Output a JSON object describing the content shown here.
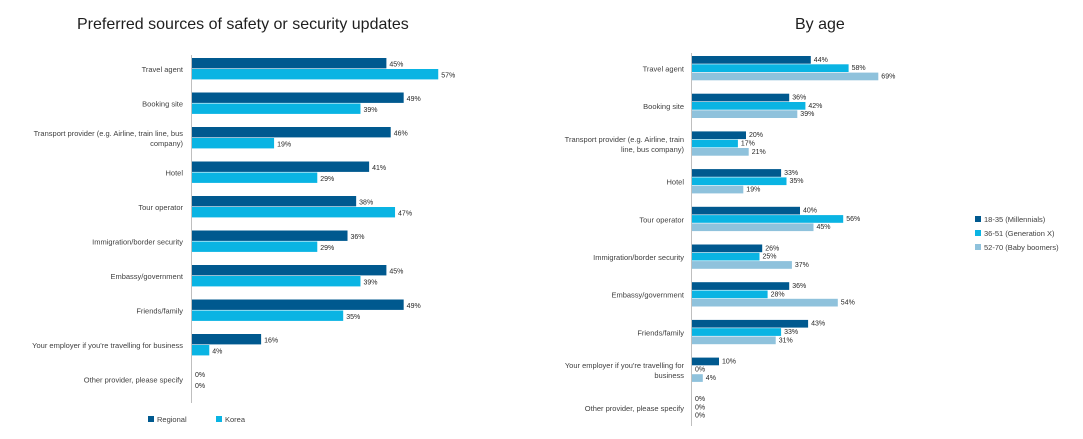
{
  "chart_data": [
    {
      "type": "bar",
      "orientation": "horizontal",
      "title": "Preferred sources of safety or security updates",
      "categories": [
        "Travel agent",
        "Booking site",
        "Transport provider (e.g. Airline, train line, bus company)",
        "Hotel",
        "Tour operator",
        "Immigration/border security",
        "Embassy/government",
        "Friends/family",
        "Your employer if you're travelling for business",
        "Other provider, please specify"
      ],
      "series": [
        {
          "name": "Regional",
          "color": "#00598f",
          "values": [
            45,
            49,
            46,
            41,
            38,
            36,
            45,
            49,
            16,
            0
          ]
        },
        {
          "name": "Korea",
          "color": "#0ab4e3",
          "values": [
            57,
            39,
            19,
            29,
            47,
            29,
            39,
            35,
            4,
            0
          ]
        }
      ],
      "value_suffix": "%",
      "legend_position": "bottom-left",
      "grid": false
    },
    {
      "type": "bar",
      "orientation": "horizontal",
      "title": "By age",
      "categories": [
        "Travel agent",
        "Booking site",
        "Transport provider (e.g. Airline, train line, bus company)",
        "Hotel",
        "Tour operator",
        "Immigration/border security",
        "Embassy/government",
        "Friends/family",
        "Your employer if you're travelling for business",
        "Other provider, please specify"
      ],
      "series": [
        {
          "name": "18-35 (Millennials)",
          "color": "#00598f",
          "values": [
            44,
            36,
            20,
            33,
            40,
            26,
            36,
            43,
            10,
            0
          ]
        },
        {
          "name": "36-51 (Generation X)",
          "color": "#0ab4e3",
          "values": [
            58,
            42,
            17,
            35,
            56,
            25,
            28,
            33,
            0,
            0
          ]
        },
        {
          "name": "52-70 (Baby boomers)",
          "color": "#8fc2dc",
          "values": [
            69,
            39,
            21,
            19,
            45,
            37,
            54,
            31,
            4,
            0
          ]
        }
      ],
      "value_suffix": "%",
      "legend_position": "right",
      "grid": false
    }
  ]
}
